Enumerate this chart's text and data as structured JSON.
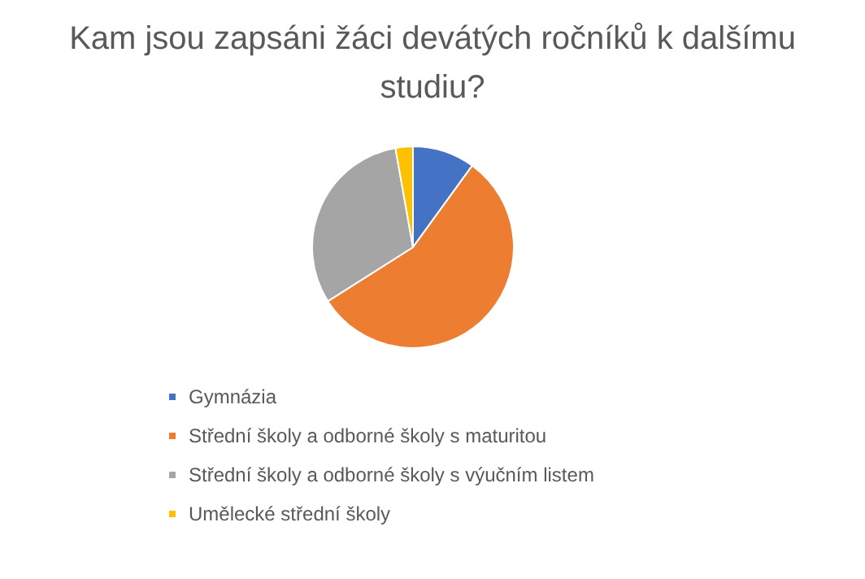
{
  "chart_data": {
    "type": "pie",
    "title": "Kam jsou zapsáni žáci devátých ročníků k dalšímu studiu?",
    "categories": [
      "Gymnázia",
      "Střední školy a odborné školy s maturitou",
      "Střední školy a odborné školy s výučním listem",
      "Umělecké střední školy"
    ],
    "values": [
      10,
      56,
      31.2,
      2.8
    ],
    "colors": [
      "#4472c4",
      "#ed7d31",
      "#a5a5a5",
      "#ffc000"
    ],
    "legend": "bottom"
  }
}
